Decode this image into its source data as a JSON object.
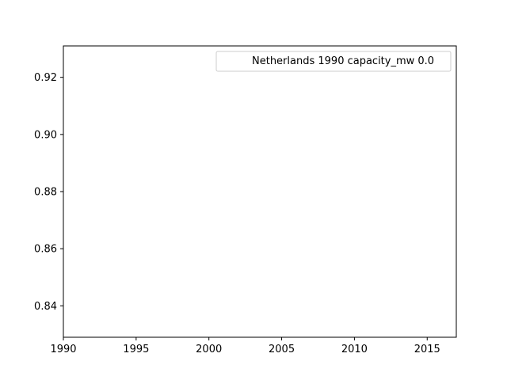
{
  "chart_data": {
    "type": "line",
    "title": "",
    "xlabel": "",
    "ylabel": "",
    "xlim": [
      1990,
      2017
    ],
    "ylim": [
      0.829,
      0.931
    ],
    "xticks": [
      1990,
      1995,
      2000,
      2005,
      2010,
      2015
    ],
    "xtick_labels": [
      "1990",
      "1995",
      "2000",
      "2005",
      "2010",
      "2015"
    ],
    "yticks": [
      0.84,
      0.86,
      0.88,
      0.9,
      0.92
    ],
    "ytick_labels": [
      "0.84",
      "0.86",
      "0.88",
      "0.90",
      "0.92"
    ],
    "grid": false,
    "legend_position": "top-right",
    "series": [
      {
        "name": "Netherlands 1990 capacity_mw 0.0",
        "x": [],
        "y": [],
        "color": "#ffffff"
      }
    ]
  }
}
